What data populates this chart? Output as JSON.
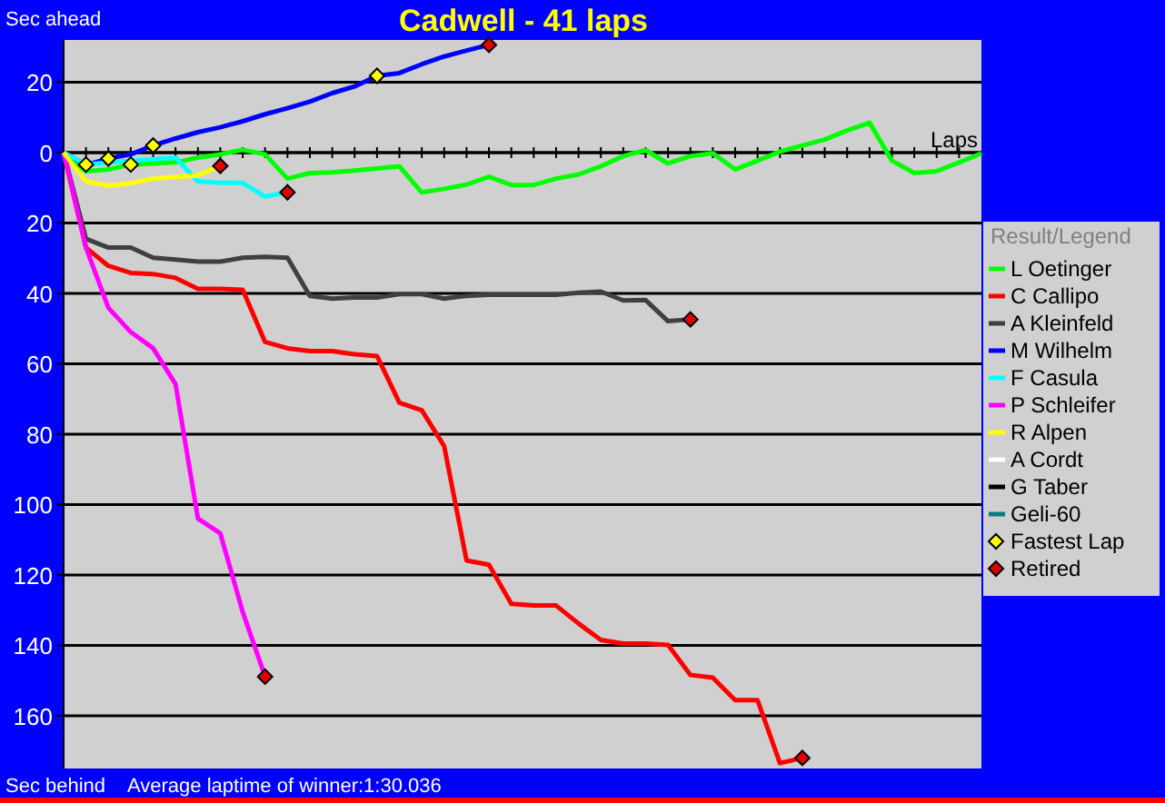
{
  "chart_data": {
    "type": "line",
    "title": "Cadwell - 41 laps",
    "xlabel": "Laps",
    "legend_title": "Result/Legend",
    "annotations": [
      "Sec ahead",
      "Sec behind",
      "Average laptime of winner:1:30.036"
    ],
    "categories": [
      null,
      null,
      null,
      null,
      null,
      null,
      null,
      null,
      null,
      null,
      null,
      null,
      null,
      null,
      null,
      null,
      null,
      null,
      null,
      null,
      null,
      null,
      null,
      null,
      null,
      null,
      null,
      null,
      null,
      null,
      null,
      null,
      null,
      null,
      null,
      null,
      null,
      null,
      null,
      null,
      null,
      null
    ],
    "ylim": [
      175,
      -32
    ],
    "yticks": [
      {
        "value": -20,
        "label": "20"
      },
      {
        "value": 0,
        "label": "0"
      },
      {
        "value": 20,
        "label": "20"
      },
      {
        "value": 40,
        "label": "40"
      },
      {
        "value": 60,
        "label": "60"
      },
      {
        "value": 80,
        "label": "80"
      },
      {
        "value": 100,
        "label": "100"
      },
      {
        "value": 120,
        "label": "120"
      },
      {
        "value": 140,
        "label": "140"
      },
      {
        "value": 160,
        "label": "160"
      }
    ],
    "grid": "y",
    "legend": "right",
    "tick_labels": "y",
    "series": [
      {
        "name": "L Oetinger",
        "color": "#00ff00",
        "values": [
          0,
          5.3,
          4.8,
          3.4,
          3.1,
          2.8,
          1.4,
          0.5,
          -0.8,
          0.5,
          7.4,
          5.8,
          5.6,
          5.1,
          4.5,
          3.9,
          11.3,
          10.3,
          9.1,
          6.9,
          9.2,
          9.2,
          7.4,
          6.2,
          3.9,
          1,
          -0.7,
          3.1,
          1,
          0.2,
          4.8,
          2.3,
          -0.3,
          -2,
          -3.7,
          -6.3,
          -8.5,
          2.3,
          5.8,
          5.3,
          2.8,
          0.2
        ]
      },
      {
        "name": "C Callipo",
        "color": "#ff0000",
        "values": [
          0,
          27,
          32.2,
          34.2,
          34.5,
          35.6,
          38.7,
          38.7,
          39,
          53.8,
          55.6,
          56.4,
          56.4,
          57.3,
          57.8,
          71.1,
          73.2,
          83.4,
          115.9,
          117.1,
          128.2,
          128.7,
          128.7,
          133.8,
          138.5,
          139.5,
          139.5,
          139.9,
          148.4,
          149.2,
          155.6,
          155.6,
          173.5,
          172,
          null,
          null,
          null,
          null,
          null,
          null,
          null,
          null
        ]
      },
      {
        "name": "A Kleinfeld",
        "color": "#404040",
        "values": [
          0,
          24.5,
          27,
          27,
          29.9,
          30.4,
          31,
          31,
          29.9,
          29.6,
          29.9,
          40.7,
          41.5,
          41.2,
          41.2,
          40.2,
          40.2,
          41.5,
          40.7,
          40.4,
          40.4,
          40.4,
          40.4,
          39.8,
          39.5,
          42,
          41.9,
          47.9,
          47.4,
          null,
          null,
          null,
          null,
          null,
          null,
          null,
          null,
          null,
          null,
          null,
          null,
          null
        ]
      },
      {
        "name": "M Wilhelm",
        "color": "#0000ff",
        "values": [
          0,
          3.5,
          1.7,
          0.5,
          -2,
          -4,
          -5.8,
          -7.2,
          -8.9,
          -10.9,
          -12.6,
          -14.5,
          -16.9,
          -18.8,
          -21.8,
          -22.6,
          -25.1,
          -27.3,
          -29,
          -30.6,
          null,
          null,
          null,
          null,
          null,
          null,
          null,
          null,
          null,
          null,
          null,
          null,
          null,
          null,
          null,
          null,
          null,
          null,
          null,
          null,
          null,
          null
        ]
      },
      {
        "name": "F Casula",
        "color": "#00ffff",
        "values": [
          0,
          3.4,
          2.8,
          2.3,
          1.9,
          1.4,
          8.2,
          8.6,
          8.6,
          12.5,
          11.3,
          null,
          null,
          null,
          null,
          null,
          null,
          null,
          null,
          null,
          null,
          null,
          null,
          null,
          null,
          null,
          null,
          null,
          null,
          null,
          null,
          null,
          null,
          null,
          null,
          null,
          null,
          null,
          null,
          null,
          null,
          null
        ]
      },
      {
        "name": "P Schleifer",
        "color": "#ff00ff",
        "values": [
          0,
          27,
          44.1,
          51,
          55.6,
          65.8,
          104,
          108.2,
          130.5,
          148.9,
          null,
          null,
          null,
          null,
          null,
          null,
          null,
          null,
          null,
          null,
          null,
          null,
          null,
          null,
          null,
          null,
          null,
          null,
          null,
          null,
          null,
          null,
          null,
          null,
          null,
          null,
          null,
          null,
          null,
          null,
          null,
          null
        ]
      },
      {
        "name": "R Alpen",
        "color": "#ffff00",
        "values": [
          0,
          8.2,
          9.4,
          8.7,
          7.4,
          6.9,
          6.5,
          3.8,
          null,
          null,
          null,
          null,
          null,
          null,
          null,
          null,
          null,
          null,
          null,
          null,
          null,
          null,
          null,
          null,
          null,
          null,
          null,
          null,
          null,
          null,
          null,
          null,
          null,
          null,
          null,
          null,
          null,
          null,
          null,
          null,
          null,
          null
        ]
      },
      {
        "name": "A Cordt",
        "color": "#ffffff",
        "values": [
          null,
          null,
          null,
          null,
          null,
          null,
          null,
          null,
          null,
          null,
          null,
          null,
          null,
          null,
          null,
          null,
          null,
          null,
          null,
          null,
          null,
          null,
          null,
          null,
          null,
          null,
          null,
          null,
          null,
          null,
          null,
          null,
          null,
          null,
          null,
          null,
          null,
          null,
          null,
          null,
          null,
          null
        ]
      },
      {
        "name": "G Taber",
        "color": "#000000",
        "values": [
          null,
          null,
          null,
          null,
          null,
          null,
          null,
          null,
          null,
          null,
          null,
          null,
          null,
          null,
          null,
          null,
          null,
          null,
          null,
          null,
          null,
          null,
          null,
          null,
          null,
          null,
          null,
          null,
          null,
          null,
          null,
          null,
          null,
          null,
          null,
          null,
          null,
          null,
          null,
          null,
          null,
          null
        ]
      },
      {
        "name": "Geli-60",
        "color": "#008080",
        "values": [
          null,
          null,
          null,
          null,
          null,
          null,
          null,
          null,
          null,
          null,
          null,
          null,
          null,
          null,
          null,
          null,
          null,
          null,
          null,
          null,
          null,
          null,
          null,
          null,
          null,
          null,
          null,
          null,
          null,
          null,
          null,
          null,
          null,
          null,
          null,
          null,
          null,
          null,
          null,
          null,
          null,
          null
        ]
      },
      {
        "name": "Fastest Lap",
        "type": "scatter",
        "marker": "diamond",
        "color": "#ffff00",
        "values": [
          null,
          3.4,
          1.7,
          3.4,
          -2,
          null,
          null,
          null,
          null,
          null,
          null,
          null,
          null,
          null,
          -21.8,
          null,
          null,
          null,
          null,
          null,
          null,
          null,
          null,
          null,
          null,
          null,
          null,
          null,
          null,
          null,
          null,
          null,
          null,
          null,
          null,
          null,
          null,
          null,
          null,
          null,
          null,
          null
        ]
      },
      {
        "name": "Retired",
        "type": "scatter",
        "marker": "diamond",
        "color": "#e00000",
        "values": [
          null,
          null,
          null,
          null,
          null,
          null,
          null,
          3.8,
          null,
          148.9,
          11.3,
          null,
          null,
          null,
          null,
          null,
          null,
          null,
          null,
          -30.6,
          null,
          null,
          null,
          null,
          null,
          null,
          null,
          null,
          47.4,
          null,
          null,
          null,
          null,
          172,
          null,
          null,
          null,
          null,
          null,
          null,
          null,
          null
        ]
      }
    ]
  }
}
